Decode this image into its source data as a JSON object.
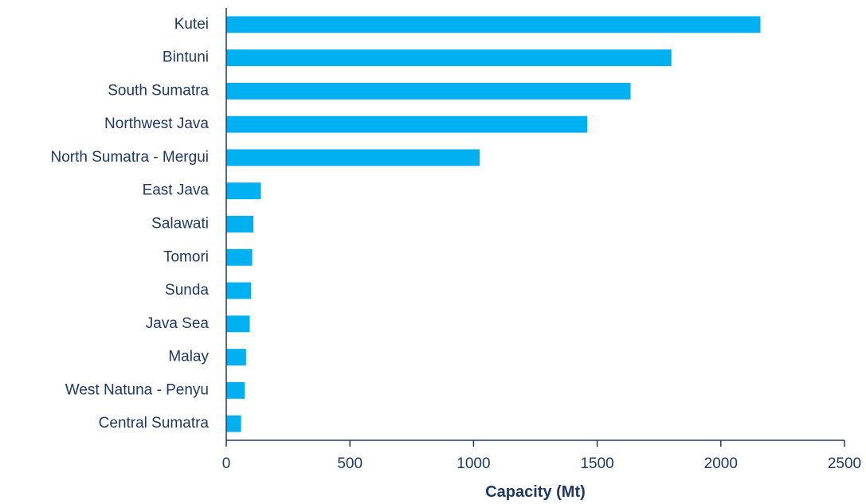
{
  "chart_data": {
    "type": "bar",
    "orientation": "horizontal",
    "categories": [
      "Kutei",
      "Bintuni",
      "South Sumatra",
      "Northwest Java",
      "North Sumatra - Mergui",
      "East Java",
      "Salawati",
      "Tomori",
      "Sunda",
      "Java Sea",
      "Malay",
      "West Natuna - Penyu",
      "Central Sumatra"
    ],
    "values": [
      2160,
      1800,
      1635,
      1460,
      1025,
      140,
      110,
      105,
      100,
      95,
      80,
      75,
      60
    ],
    "xlabel": "Capacity (Mt)",
    "ylabel": "",
    "xlim": [
      0,
      2500
    ],
    "xticks": [
      0,
      500,
      1000,
      1500,
      2000,
      2500
    ],
    "grid": false,
    "colors": {
      "bar": "#00b0f0",
      "axis": "#1f3864",
      "text": "#1f3864"
    }
  }
}
